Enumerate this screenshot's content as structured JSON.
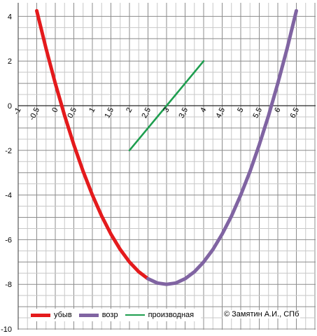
{
  "chart_data": {
    "type": "line",
    "xlim": [
      -1,
      6.5
    ],
    "ylim": [
      -10,
      4
    ],
    "x_ticks": [
      "-1",
      "-0,5",
      "0",
      "0,5",
      "1",
      "1,5",
      "2",
      "2,5",
      "3",
      "3,5",
      "4",
      "4,5",
      "5",
      "5,5",
      "6",
      "6,5"
    ],
    "y_ticks": [
      "4",
      "2",
      "0",
      "-2",
      "-4",
      "-6",
      "-8",
      "-10"
    ],
    "grid": true,
    "legend_position": "bottom-left",
    "series": [
      {
        "name": "убыв",
        "color": "#e41a1c",
        "x": [
          -0.5,
          -0.25,
          0,
          0.25,
          0.5,
          0.75,
          1,
          1.25,
          1.5,
          1.75,
          2,
          2.25,
          2.5
        ],
        "y": [
          4.25,
          2.56,
          1,
          -0.44,
          -1.75,
          -2.94,
          -4,
          -4.94,
          -5.75,
          -6.44,
          -7,
          -7.44,
          -7.75
        ]
      },
      {
        "name": "возр",
        "color": "#8064a2",
        "x": [
          2.5,
          2.75,
          3,
          3.25,
          3.5,
          3.75,
          4,
          4.25,
          4.5,
          4.75,
          5,
          5.25,
          5.5,
          5.75,
          6,
          6.25,
          6.5
        ],
        "y": [
          -7.75,
          -7.94,
          -8,
          -7.94,
          -7.75,
          -7.44,
          -7,
          -6.44,
          -5.75,
          -4.94,
          -4,
          -2.94,
          -1.75,
          -0.44,
          1,
          2.56,
          4.25
        ]
      },
      {
        "name": "производная",
        "color": "#1e9e4f",
        "x": [
          2,
          4
        ],
        "y": [
          -2,
          2
        ]
      }
    ]
  },
  "copyright": "© Замятин А.И., СПб"
}
